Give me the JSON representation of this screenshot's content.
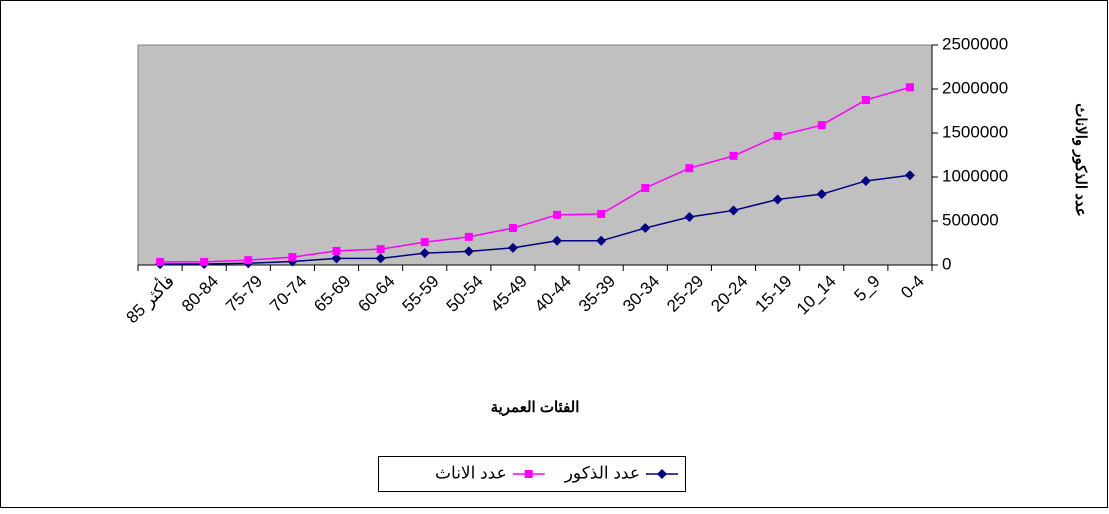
{
  "chart_data": {
    "type": "line",
    "x_label": "الفئات العمرية",
    "y_label": "عدد الذكور والاناث",
    "categories": [
      "85 فأكثر",
      "80-84",
      "75-79",
      "70-74",
      "65-69",
      "60-64",
      "55-59",
      "50-54",
      "45-49",
      "40-44",
      "35-39",
      "30-34",
      "25-29",
      "20-24",
      "15-19",
      "10_14",
      "5_9",
      "0-4"
    ],
    "series": [
      {
        "name": "عدد الذكور",
        "color": "#000080",
        "marker": "diamond",
        "values": [
          10000,
          12000,
          20000,
          40000,
          75000,
          75000,
          135000,
          155000,
          195000,
          275000,
          275000,
          420000,
          545000,
          620000,
          745000,
          805000,
          955000,
          1020000
        ]
      },
      {
        "name": "عدد الاناث",
        "color": "#ff00ff",
        "marker": "square",
        "values": [
          35000,
          35000,
          55000,
          90000,
          160000,
          180000,
          260000,
          320000,
          420000,
          570000,
          580000,
          875000,
          1100000,
          1240000,
          1465000,
          1590000,
          1875000,
          2020000
        ]
      }
    ],
    "ylim": [
      0,
      2500000
    ],
    "yticks": [
      0,
      500000,
      1000000,
      1500000,
      2000000,
      2500000
    ],
    "y_axis_side": "right",
    "legend": "bottom",
    "plot_background": "#c0c0c0"
  }
}
